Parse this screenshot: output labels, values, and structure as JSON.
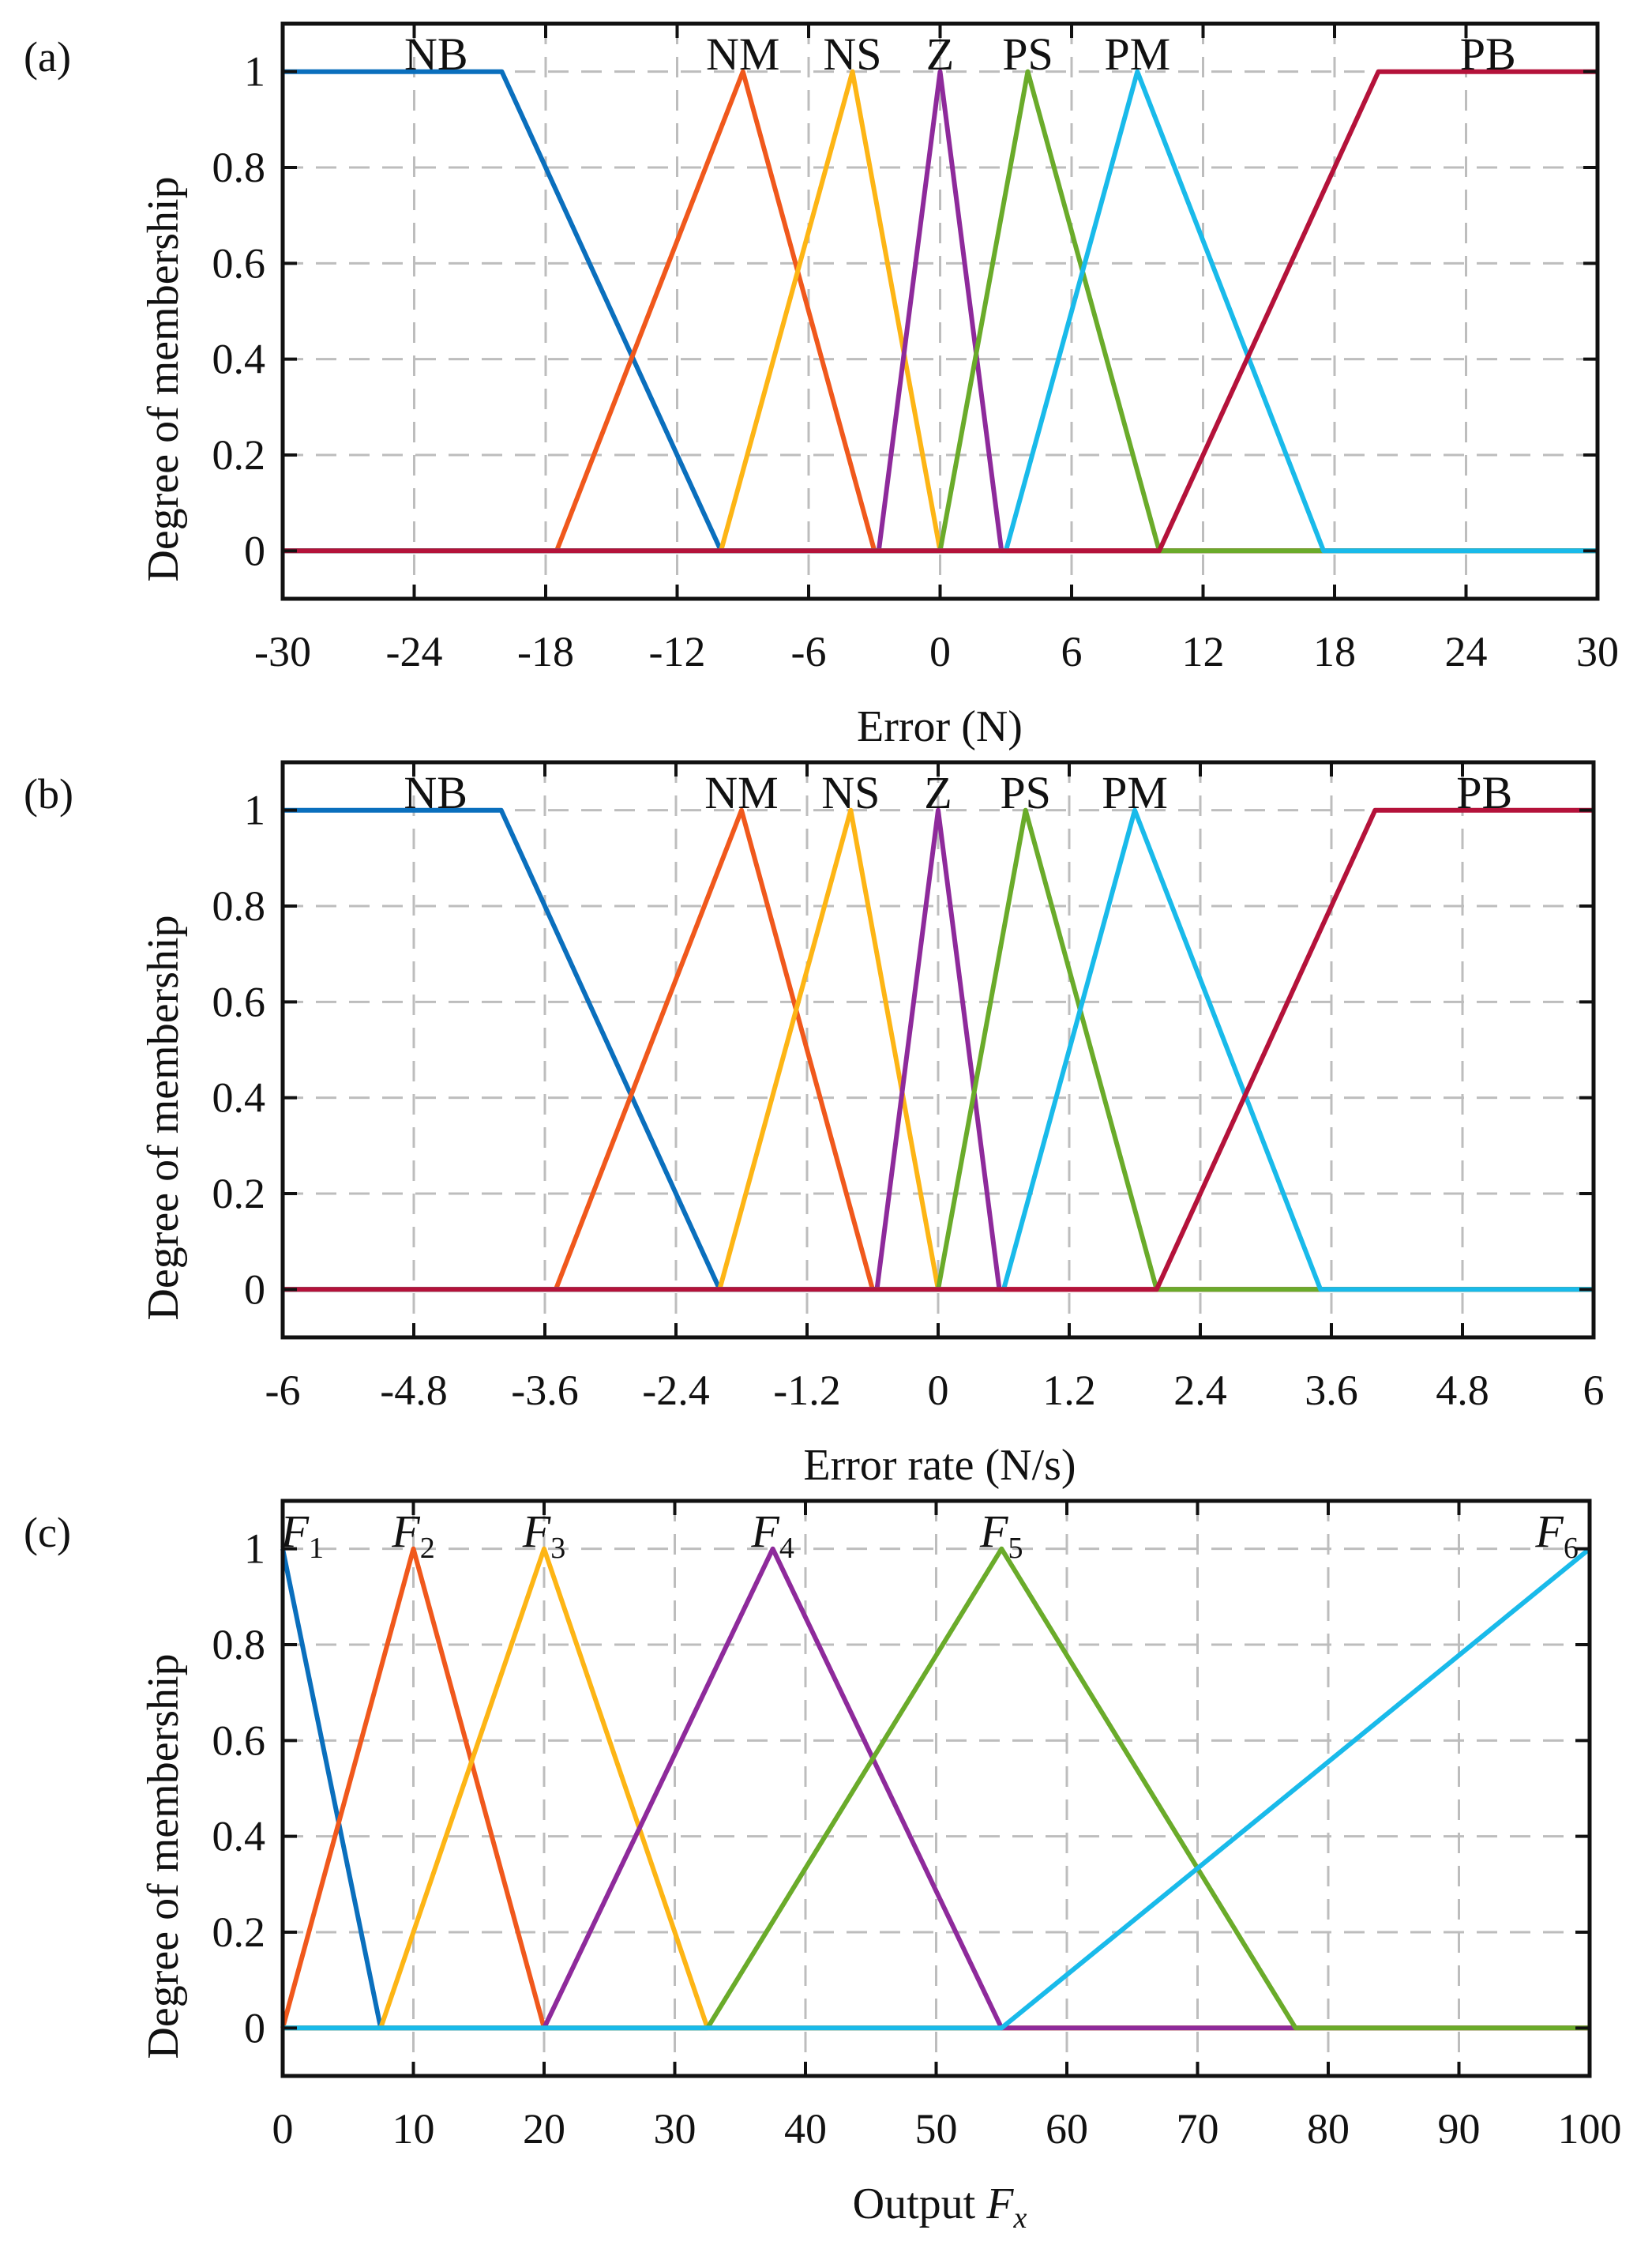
{
  "figure": {
    "panel_labels": [
      "(a)",
      "(b)",
      "(c)"
    ]
  },
  "colors": {
    "frame": "#111111",
    "grid": "#bdbdbd",
    "series": [
      "#0a6fbd",
      "#f0581c",
      "#fdb515",
      "#8e2a9b",
      "#6aab2a",
      "#19baea",
      "#b4123a"
    ]
  },
  "chart_data": [
    {
      "type": "line",
      "panel_label": "(a)",
      "title": "",
      "xlabel": "Error (N)",
      "ylabel": "Degree of membership",
      "xlim": [
        -30,
        30
      ],
      "ylim": [
        -0.1,
        1.1
      ],
      "xticks": [
        -30,
        -24,
        -18,
        -12,
        -6,
        0,
        6,
        12,
        18,
        24,
        30
      ],
      "xtick_labels": [
        "-30",
        "-24",
        "-18",
        "-12",
        "-6",
        "0",
        "6",
        "12",
        "18",
        "24",
        "30"
      ],
      "yticks": [
        0,
        0.2,
        0.4,
        0.6,
        0.8,
        1
      ],
      "ytick_labels": [
        "0",
        "0.2",
        "0.4",
        "0.6",
        "0.8",
        "1"
      ],
      "grid": true,
      "series": [
        {
          "name": "NB",
          "label_x": -23,
          "points": [
            [
              -30,
              1
            ],
            [
              -20,
              1
            ],
            [
              -10,
              0
            ],
            [
              30,
              0
            ]
          ]
        },
        {
          "name": "NM",
          "label_x": -9,
          "points": [
            [
              -30,
              0
            ],
            [
              -17.5,
              0
            ],
            [
              -9,
              1
            ],
            [
              -3,
              0
            ],
            [
              30,
              0
            ]
          ]
        },
        {
          "name": "NS",
          "label_x": -4,
          "points": [
            [
              -30,
              0
            ],
            [
              -10,
              0
            ],
            [
              -4,
              1
            ],
            [
              0,
              0
            ],
            [
              30,
              0
            ]
          ]
        },
        {
          "name": "Z",
          "label_x": 0,
          "points": [
            [
              -30,
              0
            ],
            [
              -2.8,
              0
            ],
            [
              0,
              1
            ],
            [
              2.8,
              0
            ],
            [
              30,
              0
            ]
          ]
        },
        {
          "name": "PS",
          "label_x": 4,
          "points": [
            [
              -30,
              0
            ],
            [
              0,
              0
            ],
            [
              4,
              1
            ],
            [
              10,
              0
            ],
            [
              30,
              0
            ]
          ]
        },
        {
          "name": "PM",
          "label_x": 9,
          "points": [
            [
              -30,
              0
            ],
            [
              3,
              0
            ],
            [
              9,
              1
            ],
            [
              17.5,
              0
            ],
            [
              30,
              0
            ]
          ]
        },
        {
          "name": "PB",
          "label_x": 25,
          "points": [
            [
              -30,
              0
            ],
            [
              10,
              0
            ],
            [
              20,
              1
            ],
            [
              30,
              1
            ]
          ]
        }
      ]
    },
    {
      "type": "line",
      "panel_label": "(b)",
      "title": "",
      "xlabel": "Error rate (N/s)",
      "ylabel": "Degree of membership",
      "xlim": [
        -6,
        6
      ],
      "ylim": [
        -0.1,
        1.1
      ],
      "xticks": [
        -6,
        -4.8,
        -3.6,
        -2.4,
        -1.2,
        0,
        1.2,
        2.4,
        3.6,
        4.8,
        6
      ],
      "xtick_labels": [
        "-6",
        "-4.8",
        "-3.6",
        "-2.4",
        "-1.2",
        "0",
        "1.2",
        "2.4",
        "3.6",
        "4.8",
        "6"
      ],
      "yticks": [
        0,
        0.2,
        0.4,
        0.6,
        0.8,
        1
      ],
      "ytick_labels": [
        "0",
        "0.2",
        "0.4",
        "0.6",
        "0.8",
        "1"
      ],
      "grid": true,
      "series": [
        {
          "name": "NB",
          "label_x": -4.6,
          "points": [
            [
              -6,
              1
            ],
            [
              -4,
              1
            ],
            [
              -2,
              0
            ],
            [
              6,
              0
            ]
          ]
        },
        {
          "name": "NM",
          "label_x": -1.8,
          "points": [
            [
              -6,
              0
            ],
            [
              -3.5,
              0
            ],
            [
              -1.8,
              1
            ],
            [
              -0.6,
              0
            ],
            [
              6,
              0
            ]
          ]
        },
        {
          "name": "NS",
          "label_x": -0.8,
          "points": [
            [
              -6,
              0
            ],
            [
              -2,
              0
            ],
            [
              -0.8,
              1
            ],
            [
              0,
              0
            ],
            [
              6,
              0
            ]
          ]
        },
        {
          "name": "Z",
          "label_x": 0,
          "points": [
            [
              -6,
              0
            ],
            [
              -0.56,
              0
            ],
            [
              0,
              1
            ],
            [
              0.56,
              0
            ],
            [
              6,
              0
            ]
          ]
        },
        {
          "name": "PS",
          "label_x": 0.8,
          "points": [
            [
              -6,
              0
            ],
            [
              0,
              0
            ],
            [
              0.8,
              1
            ],
            [
              2,
              0
            ],
            [
              6,
              0
            ]
          ]
        },
        {
          "name": "PM",
          "label_x": 1.8,
          "points": [
            [
              -6,
              0
            ],
            [
              0.6,
              0
            ],
            [
              1.8,
              1
            ],
            [
              3.5,
              0
            ],
            [
              6,
              0
            ]
          ]
        },
        {
          "name": "PB",
          "label_x": 5,
          "points": [
            [
              -6,
              0
            ],
            [
              2,
              0
            ],
            [
              4,
              1
            ],
            [
              6,
              1
            ]
          ]
        }
      ]
    },
    {
      "type": "line",
      "panel_label": "(c)",
      "title": "",
      "xlabel_main": "Output ",
      "xlabel_var": "F",
      "xlabel_sub": "x",
      "ylabel": "Degree of membership",
      "xlim": [
        0,
        100
      ],
      "ylim": [
        -0.1,
        1.1
      ],
      "xticks": [
        0,
        10,
        20,
        30,
        40,
        50,
        60,
        70,
        80,
        90,
        100
      ],
      "xtick_labels": [
        "0",
        "10",
        "20",
        "30",
        "40",
        "50",
        "60",
        "70",
        "80",
        "90",
        "100"
      ],
      "yticks": [
        0,
        0.2,
        0.4,
        0.6,
        0.8,
        1
      ],
      "ytick_labels": [
        "0",
        "0.2",
        "0.4",
        "0.6",
        "0.8",
        "1"
      ],
      "grid": true,
      "series": [
        {
          "name": "F",
          "sub": "1",
          "label_x": 1.5,
          "points": [
            [
              0,
              1
            ],
            [
              7.5,
              0
            ],
            [
              100,
              0
            ]
          ]
        },
        {
          "name": "F",
          "sub": "2",
          "label_x": 10,
          "points": [
            [
              0,
              0
            ],
            [
              10,
              1
            ],
            [
              20,
              0
            ],
            [
              100,
              0
            ]
          ]
        },
        {
          "name": "F",
          "sub": "3",
          "label_x": 20,
          "points": [
            [
              0,
              0
            ],
            [
              7.5,
              0
            ],
            [
              20,
              1
            ],
            [
              32.5,
              0
            ],
            [
              100,
              0
            ]
          ]
        },
        {
          "name": "F",
          "sub": "4",
          "label_x": 37.5,
          "points": [
            [
              0,
              0
            ],
            [
              20,
              0
            ],
            [
              37.5,
              1
            ],
            [
              55,
              0
            ],
            [
              100,
              0
            ]
          ]
        },
        {
          "name": "F",
          "sub": "5",
          "label_x": 55,
          "points": [
            [
              0,
              0
            ],
            [
              32.5,
              0
            ],
            [
              55,
              1
            ],
            [
              77.5,
              0
            ],
            [
              100,
              0
            ]
          ]
        },
        {
          "name": "F",
          "sub": "6",
          "label_x": 97.5,
          "points": [
            [
              0,
              0
            ],
            [
              55,
              0
            ],
            [
              100,
              1
            ]
          ]
        }
      ]
    }
  ]
}
